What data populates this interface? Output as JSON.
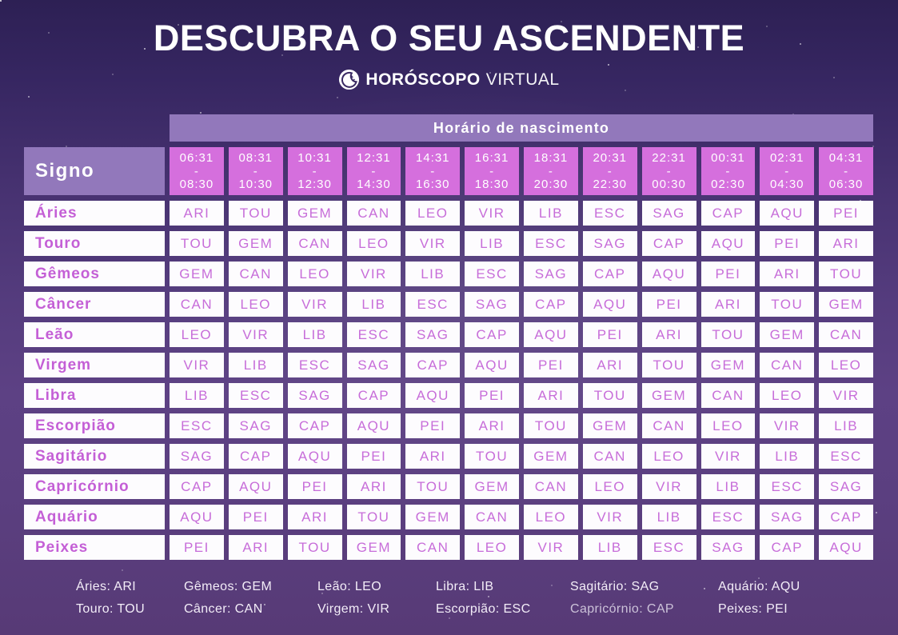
{
  "title": "DESCUBRA O SEU ASCENDENTE",
  "logo": {
    "icon": "moon-stars-icon",
    "bold": "HORÓSCOPO",
    "light": "VIRTUAL"
  },
  "table": {
    "corner_header": "Signo",
    "time_header": "Horário de nascimento",
    "time_slots": [
      "06:31\n-\n08:30",
      "08:31\n-\n10:30",
      "10:31\n-\n12:30",
      "12:31\n-\n14:30",
      "14:31\n-\n16:30",
      "16:31\n-\n18:30",
      "18:31\n-\n20:30",
      "20:31\n-\n22:30",
      "22:31\n-\n00:30",
      "00:31\n-\n02:30",
      "02:31\n-\n04:30",
      "04:31\n-\n06:30"
    ],
    "rows": [
      {
        "sign": "Áries",
        "values": [
          "ARI",
          "TOU",
          "GEM",
          "CAN",
          "LEO",
          "VIR",
          "LIB",
          "ESC",
          "SAG",
          "CAP",
          "AQU",
          "PEI"
        ]
      },
      {
        "sign": "Touro",
        "values": [
          "TOU",
          "GEM",
          "CAN",
          "LEO",
          "VIR",
          "LIB",
          "ESC",
          "SAG",
          "CAP",
          "AQU",
          "PEI",
          "ARI"
        ]
      },
      {
        "sign": "Gêmeos",
        "values": [
          "GEM",
          "CAN",
          "LEO",
          "VIR",
          "LIB",
          "ESC",
          "SAG",
          "CAP",
          "AQU",
          "PEI",
          "ARI",
          "TOU"
        ]
      },
      {
        "sign": "Câncer",
        "values": [
          "CAN",
          "LEO",
          "VIR",
          "LIB",
          "ESC",
          "SAG",
          "CAP",
          "AQU",
          "PEI",
          "ARI",
          "TOU",
          "GEM"
        ]
      },
      {
        "sign": "Leão",
        "values": [
          "LEO",
          "VIR",
          "LIB",
          "ESC",
          "SAG",
          "CAP",
          "AQU",
          "PEI",
          "ARI",
          "TOU",
          "GEM",
          "CAN"
        ]
      },
      {
        "sign": "Virgem",
        "values": [
          "VIR",
          "LIB",
          "ESC",
          "SAG",
          "CAP",
          "AQU",
          "PEI",
          "ARI",
          "TOU",
          "GEM",
          "CAN",
          "LEO"
        ]
      },
      {
        "sign": "Libra",
        "values": [
          "LIB",
          "ESC",
          "SAG",
          "CAP",
          "AQU",
          "PEI",
          "ARI",
          "TOU",
          "GEM",
          "CAN",
          "LEO",
          "VIR"
        ]
      },
      {
        "sign": "Escorpião",
        "values": [
          "ESC",
          "SAG",
          "CAP",
          "AQU",
          "PEI",
          "ARI",
          "TOU",
          "GEM",
          "CAN",
          "LEO",
          "VIR",
          "LIB"
        ]
      },
      {
        "sign": "Sagitário",
        "values": [
          "SAG",
          "CAP",
          "AQU",
          "PEI",
          "ARI",
          "TOU",
          "GEM",
          "CAN",
          "LEO",
          "VIR",
          "LIB",
          "ESC"
        ]
      },
      {
        "sign": "Capricórnio",
        "values": [
          "CAP",
          "AQU",
          "PEI",
          "ARI",
          "TOU",
          "GEM",
          "CAN",
          "LEO",
          "VIR",
          "LIB",
          "ESC",
          "SAG"
        ]
      },
      {
        "sign": "Aquário",
        "values": [
          "AQU",
          "PEI",
          "ARI",
          "TOU",
          "GEM",
          "CAN",
          "LEO",
          "VIR",
          "LIB",
          "ESC",
          "SAG",
          "CAP"
        ]
      },
      {
        "sign": "Peixes",
        "values": [
          "PEI",
          "ARI",
          "TOU",
          "GEM",
          "CAN",
          "LEO",
          "VIR",
          "LIB",
          "ESC",
          "SAG",
          "CAP",
          "AQU"
        ]
      }
    ]
  },
  "legend": {
    "columns": [
      {
        "items": [
          {
            "text": "Áries: ARI",
            "muted": false
          },
          {
            "text": "Touro: TOU",
            "muted": false
          }
        ]
      },
      {
        "items": [
          {
            "text": "Gêmeos: GEM",
            "muted": false
          },
          {
            "text": "Câncer: CAN",
            "muted": false
          }
        ]
      },
      {
        "items": [
          {
            "text": "Leão: LEO",
            "muted": false
          },
          {
            "text": "Virgem: VIR",
            "muted": false
          }
        ]
      },
      {
        "items": [
          {
            "text": "Libra: LIB",
            "muted": false
          },
          {
            "text": "Escorpião: ESC",
            "muted": false
          }
        ]
      },
      {
        "items": [
          {
            "text": "Sagitário: SAG",
            "muted": false
          },
          {
            "text": "Capricórnio: CAP",
            "muted": true
          }
        ]
      },
      {
        "items": [
          {
            "text": "Aquário: AQU",
            "muted": false
          },
          {
            "text": "Peixes: PEI",
            "muted": false
          }
        ]
      }
    ]
  },
  "colors": {
    "background_top": "#2d2054",
    "background_bottom": "#573a76",
    "header_band": "#9278bb",
    "time_cell_background": "#d56fdd",
    "cell_background": "#fdfcfe",
    "cell_text": "#c76dd9",
    "sign_name_text": "#c45fd6",
    "title_text": "#ffffff",
    "legend_text": "#f3edf8",
    "legend_muted_text": "#ccc2d9"
  }
}
